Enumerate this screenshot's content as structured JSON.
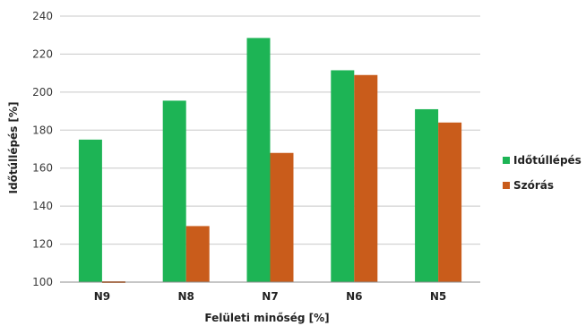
{
  "chart_data": {
    "type": "bar",
    "categories": [
      "N9",
      "N8",
      "N7",
      "N6",
      "N5"
    ],
    "series": [
      {
        "name": "Időtúllépés",
        "color": "#1db455",
        "values": [
          175,
          195.5,
          228.5,
          211.5,
          191
        ]
      },
      {
        "name": "Szórás",
        "color": "#c95c1b",
        "values": [
          100,
          129.5,
          168,
          209,
          184
        ]
      }
    ],
    "xlabel": "Felületi minőség [%]",
    "ylabel": "Időtúllépés [%]",
    "ylim": [
      100,
      240
    ],
    "yticks": [
      100,
      120,
      140,
      160,
      180,
      200,
      220,
      240
    ],
    "grid": true,
    "legend": "right"
  }
}
